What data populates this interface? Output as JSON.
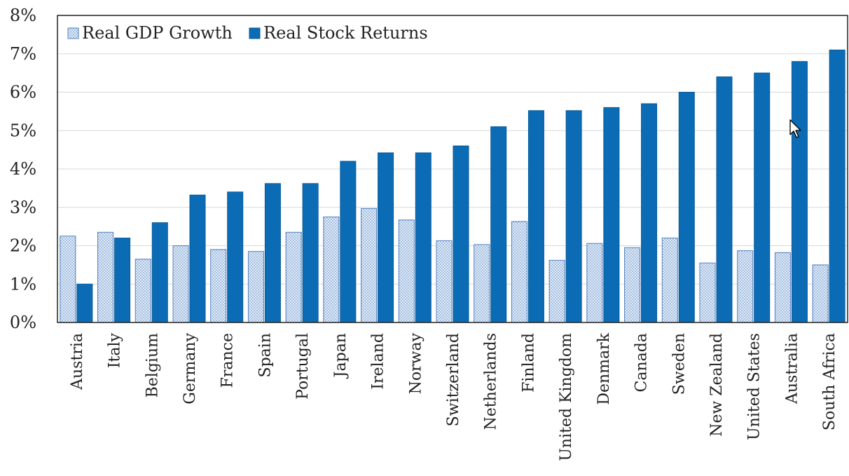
{
  "chart_data": {
    "type": "bar",
    "title": "",
    "xlabel": "",
    "ylabel": "",
    "ylim": [
      0,
      8
    ],
    "yticks": [
      "0%",
      "1%",
      "2%",
      "3%",
      "4%",
      "5%",
      "6%",
      "7%",
      "8%"
    ],
    "grid": true,
    "legend_position": "top-left",
    "categories": [
      "Austria",
      "Italy",
      "Belgium",
      "Germany",
      "France",
      "Spain",
      "Portugal",
      "Japan",
      "Ireland",
      "Norway",
      "Switzerland",
      "Netherlands",
      "Finland",
      "United Kingdom",
      "Denmark",
      "Canada",
      "Sweden",
      "New Zealand",
      "United States",
      "Australia",
      "South Africa"
    ],
    "series": [
      {
        "name": "Real GDP Growth",
        "color": "#d8e6f7",
        "pattern": "dotted",
        "values": [
          2.25,
          2.35,
          1.65,
          2.0,
          1.9,
          1.85,
          2.35,
          2.75,
          2.97,
          2.67,
          2.13,
          2.03,
          2.63,
          1.62,
          2.06,
          1.95,
          2.2,
          1.55,
          1.87,
          1.82,
          1.5
        ]
      },
      {
        "name": "Real Stock Returns",
        "color": "#0b6cb5",
        "pattern": "solid",
        "values": [
          1.0,
          2.2,
          2.6,
          3.32,
          3.4,
          3.62,
          3.62,
          4.2,
          4.42,
          4.42,
          4.6,
          5.1,
          5.52,
          5.52,
          5.6,
          5.7,
          6.0,
          6.4,
          6.5,
          6.8,
          7.1
        ]
      }
    ]
  }
}
